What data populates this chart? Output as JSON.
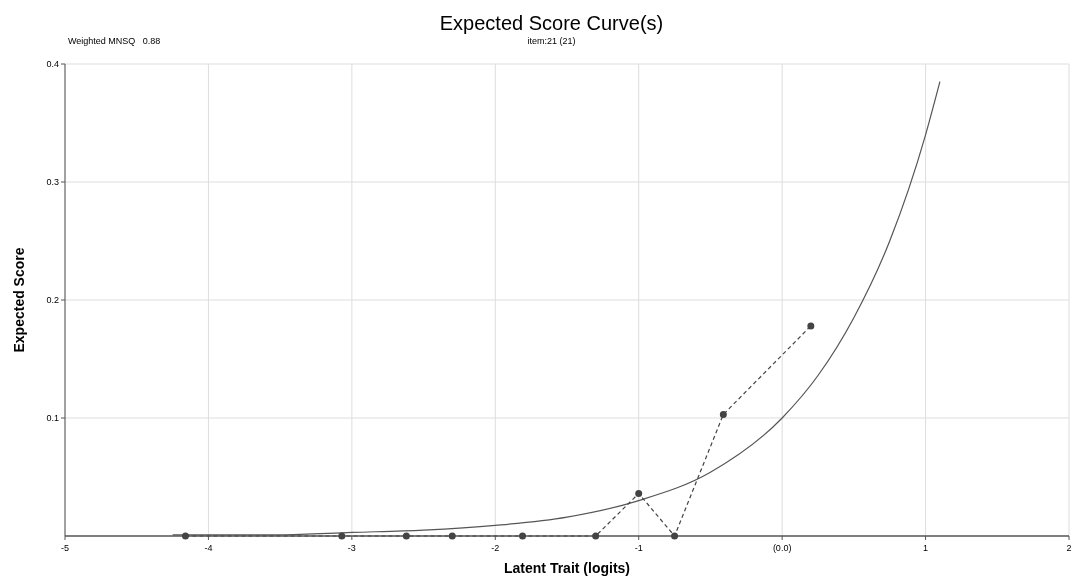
{
  "chart_data": {
    "type": "line",
    "title": "Expected Score Curve(s)",
    "subtitle": "item:21 (21)",
    "xlabel": "Latent Trait (logits)",
    "ylabel": "Expected Score",
    "annotations": [
      "Weighted MNSQ   0.88"
    ],
    "xlim": [
      -5,
      2
    ],
    "xticks": [
      -5,
      -4,
      -3,
      -2,
      -1,
      {
        "value": 0,
        "label": "(0.0)"
      },
      1,
      2
    ],
    "ylim": [
      0,
      0.4
    ],
    "yticks": [
      0.1,
      0.2,
      0.3,
      0.4
    ],
    "grid": true,
    "series": [
      {
        "color": "#555555",
        "marker": "none",
        "line_style": "solid",
        "x": [
          -4.25,
          -3.5,
          -3,
          -2.5,
          -2,
          -1.5,
          -1,
          -0.5,
          0,
          0.25,
          0.5,
          0.75,
          1,
          1.1
        ],
        "values": [
          0.001,
          0.001,
          0.003,
          0.005,
          0.009,
          0.016,
          0.03,
          0.054,
          0.1,
          0.136,
          0.185,
          0.25,
          0.34,
          0.385
        ]
      },
      {
        "color": "#444444",
        "marker": "circle",
        "line_style": "dashed",
        "x": [
          -4.16,
          -3.07,
          -2.62,
          -2.3,
          -1.81,
          -1.3,
          -1.0,
          -0.75,
          -0.41,
          0.2
        ],
        "values": [
          0,
          0,
          0,
          0,
          0,
          0,
          0.036,
          0,
          0.103,
          0.178
        ]
      }
    ]
  }
}
